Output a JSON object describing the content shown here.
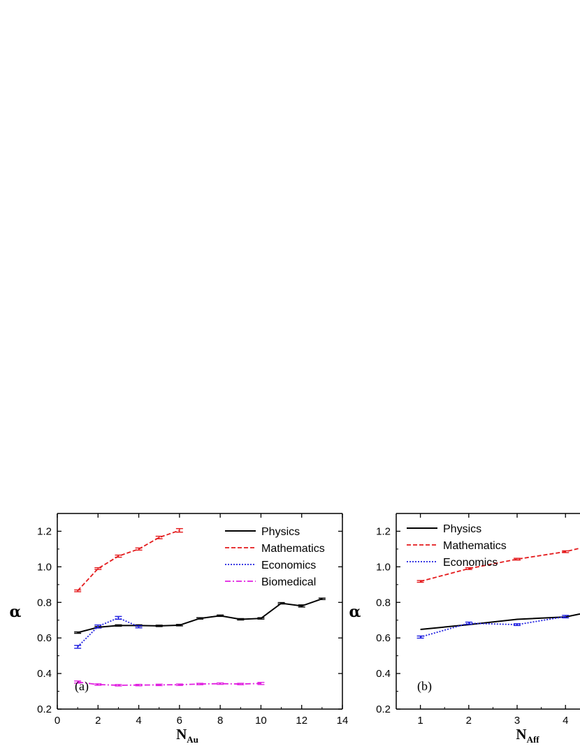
{
  "chart_data": [
    {
      "type": "line",
      "panel_label": "(a)",
      "ylabel": "α",
      "xlabel": {
        "main": "N",
        "sub": "Au"
      },
      "xlim": [
        0,
        14
      ],
      "ylim": [
        0.2,
        1.3
      ],
      "xticks": [
        0,
        2,
        4,
        6,
        8,
        10,
        12,
        14
      ],
      "yticks": [
        0.2,
        0.4,
        0.6,
        0.8,
        1.0,
        1.2
      ],
      "xtick_labels": [
        "0",
        "2",
        "4",
        "6",
        "8",
        "10",
        "12",
        "14"
      ],
      "ytick_labels": [
        "0.2",
        "0.4",
        "0.6",
        "0.8",
        "1.0",
        "1.2"
      ],
      "legend_position": "top-right",
      "series": [
        {
          "name": "Physics",
          "color": "#000000",
          "style": "solid",
          "x": [
            1,
            2,
            3,
            4,
            5,
            6,
            7,
            8,
            9,
            10,
            11,
            12,
            13
          ],
          "y": [
            0.63,
            0.66,
            0.67,
            0.67,
            0.668,
            0.672,
            0.71,
            0.725,
            0.705,
            0.71,
            0.795,
            0.78,
            0.82
          ],
          "err": [
            0.004,
            0.004,
            0.004,
            0.004,
            0.004,
            0.004,
            0.004,
            0.004,
            0.004,
            0.004,
            0.004,
            0.006,
            0.004
          ]
        },
        {
          "name": "Mathematics",
          "color": "#e41a1c",
          "style": "dashed",
          "x": [
            1,
            2,
            3,
            4,
            5,
            6
          ],
          "y": [
            0.865,
            0.99,
            1.06,
            1.1,
            1.165,
            1.205
          ],
          "err": [
            0.005,
            0.005,
            0.006,
            0.006,
            0.007,
            0.01
          ]
        },
        {
          "name": "Economics",
          "color": "#1f1fe0",
          "style": "dotted",
          "x": [
            1,
            2,
            3,
            4
          ],
          "y": [
            0.55,
            0.665,
            0.713,
            0.663
          ],
          "err": [
            0.008,
            0.008,
            0.008,
            0.006
          ]
        },
        {
          "name": "Biomedical",
          "color": "#e020e0",
          "style": "dashdot",
          "x": [
            1,
            2,
            3,
            4,
            5,
            6,
            7,
            8,
            9,
            10
          ],
          "y": [
            0.352,
            0.338,
            0.334,
            0.335,
            0.336,
            0.337,
            0.341,
            0.343,
            0.341,
            0.344
          ],
          "err": [
            0.006,
            0.004,
            0.004,
            0.004,
            0.004,
            0.004,
            0.004,
            0.004,
            0.004,
            0.006
          ]
        }
      ]
    },
    {
      "type": "line",
      "panel_label": "(b)",
      "ylabel": "α",
      "xlabel": {
        "main": "N",
        "sub": "Aff"
      },
      "xlim": [
        0.5,
        4.3
      ],
      "ylim": [
        0.2,
        1.3
      ],
      "xticks": [
        1,
        2,
        3,
        4
      ],
      "yticks": [
        0.2,
        0.4,
        0.6,
        0.8,
        1.0,
        1.2
      ],
      "xtick_labels": [
        "1",
        "2",
        "3",
        "4"
      ],
      "ytick_labels": [
        "0.2",
        "0.4",
        "0.6",
        "0.8",
        "1.0",
        "1.2"
      ],
      "legend_position": "top-left",
      "series": [
        {
          "name": "Physics",
          "color": "#000000",
          "style": "solid",
          "x": [
            1,
            2,
            3,
            4,
            4.3
          ],
          "y": [
            0.648,
            0.675,
            0.705,
            0.718,
            0.735
          ],
          "err": [
            0,
            0,
            0,
            0,
            0
          ]
        },
        {
          "name": "Mathematics",
          "color": "#e41a1c",
          "style": "dashed",
          "x": [
            1,
            2,
            3,
            4,
            4.3
          ],
          "y": [
            0.918,
            0.99,
            1.043,
            1.085,
            1.105
          ],
          "err": [
            0.005,
            0.005,
            0.005,
            0.005,
            0
          ]
        },
        {
          "name": "Economics",
          "color": "#1f1fe0",
          "style": "dotted",
          "x": [
            1,
            2,
            3,
            4
          ],
          "y": [
            0.605,
            0.683,
            0.675,
            0.72
          ],
          "err": [
            0.006,
            0.006,
            0.005,
            0.007
          ]
        }
      ]
    }
  ]
}
